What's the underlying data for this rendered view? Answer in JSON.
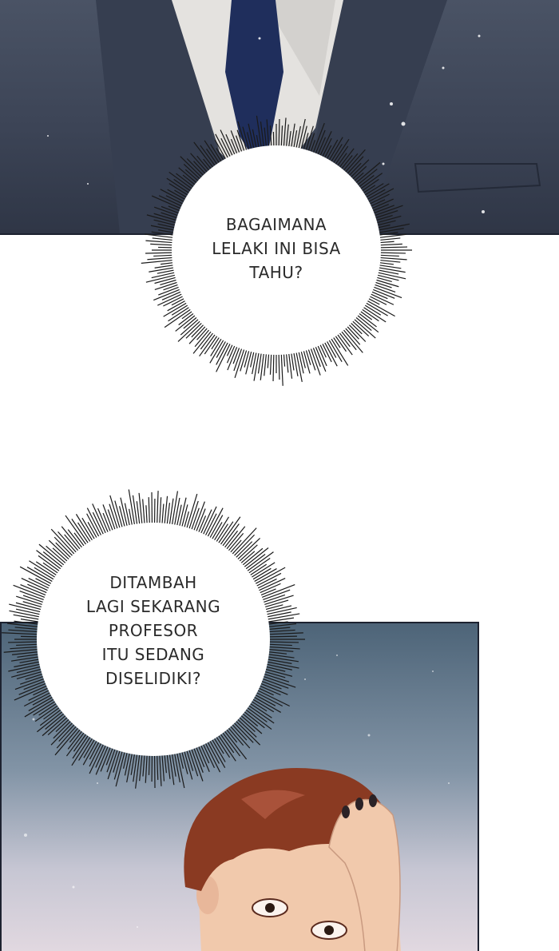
{
  "bubble_1": {
    "lines": [
      "BAGAIMANA",
      "LELAKI INI BISA",
      "TAHU?"
    ]
  },
  "bubble_2": {
    "lines": [
      "DITAMBAH",
      "LAGI SEKARANG",
      "PROFESOR",
      "ITU SEDANG",
      "DISELIDIKI?"
    ]
  },
  "colors": {
    "suit": "#2f3646",
    "tie": "#1f2e5c",
    "shirt": "#e4e2df",
    "hair": "#8a3a22",
    "skin": "#f1c9ac",
    "sky_top": "#4d6478",
    "sky_bottom": "#e1d8e0"
  }
}
